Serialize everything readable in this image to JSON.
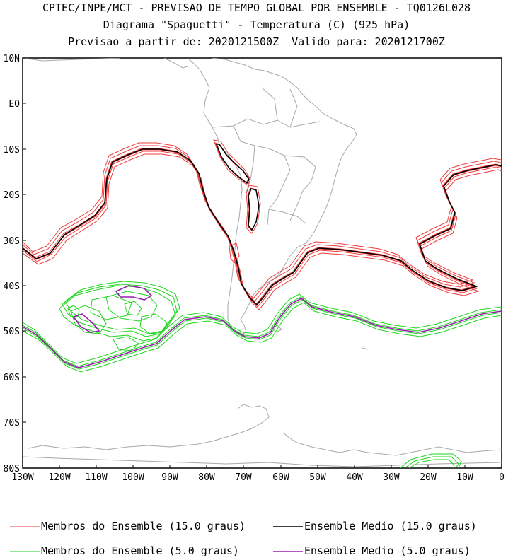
{
  "header": {
    "line1": "CPTEC/INPE/MCT - PREVISAO DE TEMPO GLOBAL POR ENSEMBLE - TQ0126L028",
    "line2": "Diagrama \"Spaguetti\" - Temperatura (C) (925 hPa)",
    "line3": "Previsao a partir de: 2020121500Z  Valido para: 2020121700Z"
  },
  "axes": {
    "lat_labels": [
      "10N",
      "EQ",
      "10S",
      "20S",
      "30S",
      "40S",
      "50S",
      "60S",
      "70S",
      "80S"
    ],
    "lon_labels": [
      "130W",
      "120W",
      "110W",
      "100W",
      "90W",
      "80W",
      "70W",
      "60W",
      "50W",
      "40W",
      "30W",
      "20W",
      "10W",
      "0"
    ]
  },
  "legend": {
    "items": [
      {
        "label": "Membros do Ensemble (15.0 graus)",
        "color": "#f03c3c"
      },
      {
        "label": "Ensemble Medio (15.0 graus)",
        "color": "#000000"
      },
      {
        "label": "Membros do Ensemble (5.0 graus)",
        "color": "#1ed61e"
      },
      {
        "label": "Ensemble Medio (5.0 graus)",
        "color": "#9a1fb0"
      }
    ]
  },
  "colors": {
    "coast": "#a8a8a8",
    "frame": "#000000"
  }
}
